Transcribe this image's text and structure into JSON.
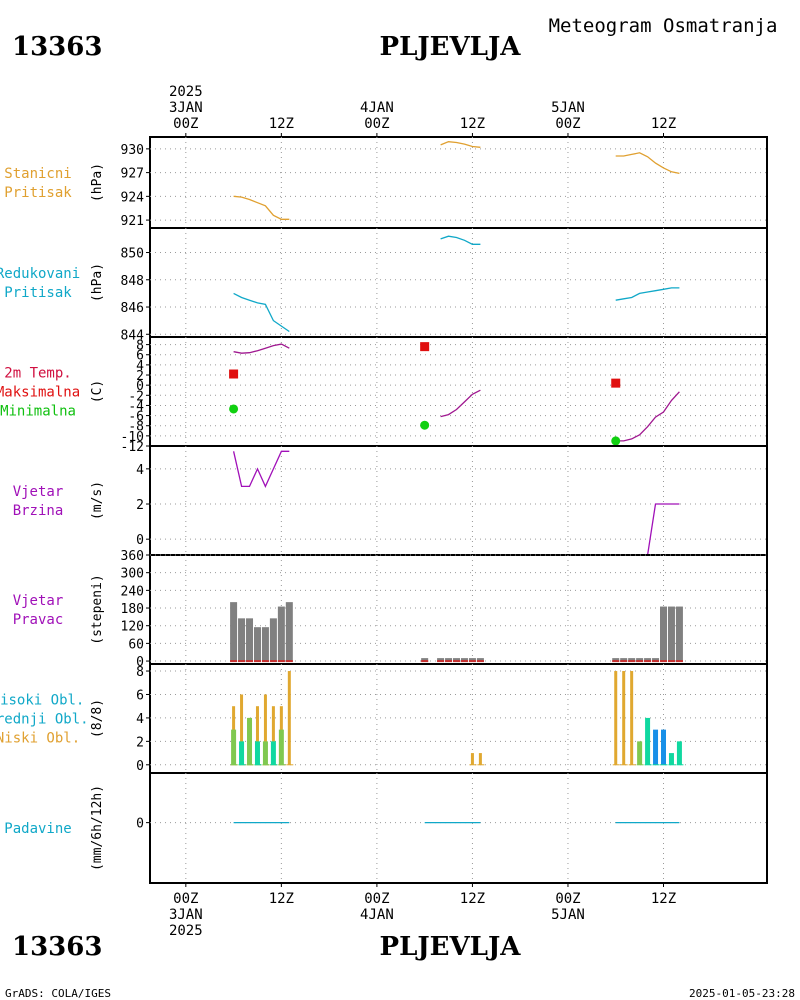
{
  "header": {
    "station_id": "13363",
    "station_name": "PLJEVLJA",
    "product": "Meteogram Osmatranja"
  },
  "footer": {
    "station_id": "13363",
    "station_name": "PLJEVLJA",
    "credit": "GrADS: COLA/IGES",
    "timestamp": "2025-01-05-23:28"
  },
  "time_axis": {
    "top": [
      {
        "h": 0,
        "lines": [
          "2025",
          "3JAN",
          "00Z"
        ]
      },
      {
        "h": 12,
        "lines": [
          "12Z"
        ]
      },
      {
        "h": 24,
        "lines": [
          "4JAN",
          "00Z"
        ]
      },
      {
        "h": 36,
        "lines": [
          "12Z"
        ]
      },
      {
        "h": 48,
        "lines": [
          "5JAN",
          "00Z"
        ]
      },
      {
        "h": 60,
        "lines": [
          "12Z"
        ]
      }
    ],
    "bottom": [
      {
        "h": 0,
        "lines": [
          "00Z",
          "3JAN",
          "2025"
        ]
      },
      {
        "h": 12,
        "lines": [
          "12Z"
        ]
      },
      {
        "h": 24,
        "lines": [
          "00Z",
          "4JAN"
        ]
      },
      {
        "h": 36,
        "lines": [
          "12Z"
        ]
      },
      {
        "h": 48,
        "lines": [
          "00Z",
          "5JAN"
        ]
      },
      {
        "h": 60,
        "lines": [
          "12Z"
        ]
      }
    ]
  },
  "colors": {
    "station_pressure": "#e0a030",
    "reduced_pressure": "#10a8c8",
    "temp_line": "#a01890",
    "tmax": "#e01010",
    "tmin": "#10d010",
    "wind": "#a010b8",
    "wind_dir_bar": "#808080",
    "wind_dir_base": "#c83030",
    "cloud_high": "#10d8a0",
    "cloud_mid": "#80c850",
    "cloud_low": "#e0a830",
    "cloud_extra": "#1890e8",
    "precip": "#10a8c8",
    "temp_label_red": "#d01040",
    "temp_label_max": "#e01010",
    "temp_label_min": "#10c010",
    "wind_label": "#a010b8"
  },
  "chart_data": [
    {
      "type": "line",
      "panel": "station_pressure",
      "labels": [
        "Stanicni",
        "Pritisak"
      ],
      "ylabel": "(hPa)",
      "yticks": [
        921,
        924,
        927,
        930
      ],
      "ylim": [
        920,
        931.5
      ],
      "series": [
        {
          "x": [
            6,
            7,
            8,
            9,
            10,
            11,
            12,
            13
          ],
          "y": [
            924.0,
            923.9,
            923.6,
            923.2,
            922.8,
            921.6,
            921.1,
            921.1
          ]
        },
        {
          "x": [
            32,
            33,
            34,
            35,
            36,
            37
          ],
          "y": [
            930.5,
            930.9,
            930.8,
            930.6,
            930.3,
            930.2
          ]
        },
        {
          "x": [
            54,
            55,
            56,
            57,
            58,
            59,
            60,
            61,
            62
          ],
          "y": [
            929.1,
            929.1,
            929.3,
            929.5,
            929.0,
            928.2,
            927.6,
            927.1,
            926.9
          ]
        }
      ]
    },
    {
      "type": "line",
      "panel": "reduced_pressure",
      "labels": [
        "Redukovani",
        "Pritisak"
      ],
      "ylabel": "(hPa)",
      "yticks": [
        844,
        846,
        848,
        850
      ],
      "ylim": [
        843.8,
        851.8
      ],
      "series": [
        {
          "x": [
            6,
            7,
            8,
            9,
            10,
            11,
            12,
            13
          ],
          "y": [
            847.0,
            846.7,
            846.5,
            846.3,
            846.2,
            845.0,
            844.6,
            844.2
          ]
        },
        {
          "x": [
            32,
            33,
            34,
            35,
            36,
            37
          ],
          "y": [
            851.0,
            851.2,
            851.1,
            850.9,
            850.6,
            850.6
          ]
        },
        {
          "x": [
            54,
            55,
            56,
            57,
            58,
            59,
            60,
            61,
            62
          ],
          "y": [
            846.5,
            846.6,
            846.7,
            847.0,
            847.1,
            847.2,
            847.3,
            847.4,
            847.4
          ]
        }
      ]
    },
    {
      "type": "line",
      "panel": "temperature",
      "labels": [
        "2m Temp.",
        "Maksimalna",
        "Minimalna"
      ],
      "ylabel": "(C)",
      "yticks": [
        -12,
        -10,
        -8,
        -6,
        -4,
        -2,
        0,
        2,
        4,
        6,
        8
      ],
      "ylim": [
        -12,
        9.5
      ],
      "series": [
        {
          "x": [
            6,
            7,
            8,
            9,
            10,
            11,
            12,
            13
          ],
          "y": [
            6.6,
            6.3,
            6.4,
            6.8,
            7.3,
            7.8,
            8.1,
            7.3
          ]
        },
        {
          "x": [
            32,
            33,
            34,
            35,
            36,
            37
          ],
          "y": [
            -6.2,
            -5.8,
            -4.8,
            -3.3,
            -1.8,
            -1.0
          ]
        },
        {
          "x": [
            54,
            55,
            56,
            57,
            58,
            59,
            60,
            61,
            62
          ],
          "y": [
            -11.0,
            -11.0,
            -10.6,
            -9.8,
            -8.2,
            -6.3,
            -5.3,
            -3.0,
            -1.3
          ]
        }
      ],
      "max_points": [
        {
          "x": 6,
          "y": 2.2
        },
        {
          "x": 30,
          "y": 7.6
        },
        {
          "x": 54,
          "y": 0.4
        }
      ],
      "min_points": [
        {
          "x": 6,
          "y": -4.7
        },
        {
          "x": 30,
          "y": -7.9
        },
        {
          "x": 54,
          "y": -11.0
        }
      ]
    },
    {
      "type": "line",
      "panel": "wind_speed",
      "labels": [
        "Vjetar",
        "Brzina"
      ],
      "ylabel": "(m/s)",
      "yticks": [
        0,
        2,
        4
      ],
      "ylim": [
        -0.9,
        5.3
      ],
      "series": [
        {
          "x": [
            6,
            7,
            8,
            9,
            10,
            11,
            12,
            13
          ],
          "y": [
            5,
            3,
            3,
            4,
            3,
            4,
            5,
            5
          ]
        },
        {
          "x": [
            32,
            33,
            34,
            35,
            36,
            37
          ],
          "y": [
            -0.9,
            -0.9,
            -0.9,
            -0.9,
            -0.9,
            -0.9
          ]
        },
        {
          "x": [
            54,
            55,
            56,
            57,
            58,
            59,
            60,
            61,
            62
          ],
          "y": [
            -0.9,
            -0.9,
            -0.9,
            -0.9,
            -0.9,
            2,
            2,
            2,
            2
          ]
        }
      ]
    },
    {
      "type": "bar",
      "panel": "wind_direction",
      "labels": [
        "Vjetar",
        "Pravac"
      ],
      "ylabel": "(stepeni)",
      "yticks": [
        0,
        60,
        120,
        180,
        240,
        300,
        360
      ],
      "ylim": [
        -10,
        360
      ],
      "x": [
        6,
        7,
        8,
        9,
        10,
        11,
        12,
        13,
        30,
        32,
        33,
        34,
        35,
        36,
        37,
        54,
        55,
        56,
        57,
        58,
        59,
        60,
        61,
        62
      ],
      "values": [
        200,
        145,
        145,
        115,
        115,
        145,
        185,
        200,
        10,
        10,
        10,
        10,
        10,
        10,
        10,
        10,
        10,
        10,
        10,
        10,
        10,
        185,
        185,
        185
      ]
    },
    {
      "type": "bar",
      "panel": "cloud_cover",
      "labels": [
        "Visoki Obl.",
        "Srednji Obl.",
        "Niski Obl."
      ],
      "ylabel": "(8/8)",
      "yticks": [
        0,
        2,
        4,
        6,
        8
      ],
      "ylim": [
        -0.7,
        8.6
      ],
      "series": [
        {
          "name": "Niski Obl.",
          "x": [
            6,
            7,
            8,
            9,
            10,
            11,
            12,
            13,
            36,
            37,
            54,
            55,
            56
          ],
          "values": [
            5,
            6,
            4,
            5,
            6,
            5,
            5,
            8,
            1,
            1,
            8,
            8,
            8
          ]
        },
        {
          "name": "Srednji Obl.",
          "x": [
            6,
            8,
            10,
            12,
            57
          ],
          "values": [
            3,
            4,
            2,
            3,
            2
          ]
        },
        {
          "name": "Visoki Obl.",
          "x": [
            7,
            9,
            11,
            58,
            59,
            60,
            61,
            62
          ],
          "values": [
            2,
            2,
            2,
            4,
            3,
            3,
            1,
            2
          ]
        }
      ]
    },
    {
      "type": "line",
      "panel": "precipitation",
      "labels": [
        "Padavine"
      ],
      "ylabel": "(mm/6h/12h)",
      "yticks": [
        0
      ],
      "ylim": [
        -4.5,
        3.7
      ],
      "series": [
        {
          "x": [
            6,
            13
          ],
          "y": [
            0,
            0
          ]
        },
        {
          "x": [
            30,
            37
          ],
          "y": [
            0,
            0
          ]
        },
        {
          "x": [
            54,
            62
          ],
          "y": [
            0,
            0
          ]
        }
      ]
    }
  ]
}
